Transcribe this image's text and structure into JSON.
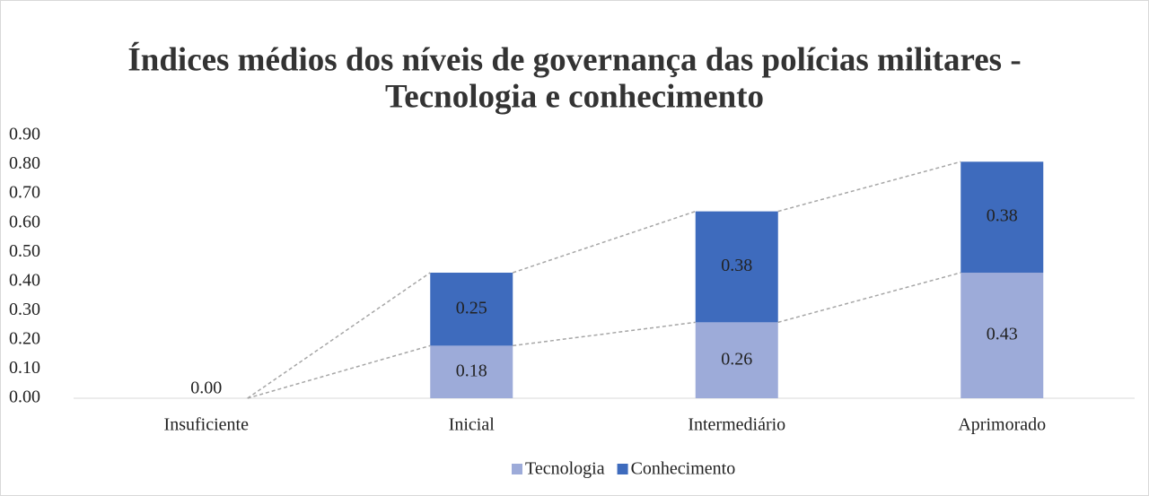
{
  "chart_data": {
    "type": "bar",
    "stacked": true,
    "title": "Índices médios dos níveis de governança das polícias militares -",
    "subtitle": "Tecnologia e conhecimento",
    "categories": [
      "Insuficiente",
      "Inicial",
      "Intermediário",
      "Aprimorado"
    ],
    "series": [
      {
        "name": "Tecnologia",
        "color": "#9dabd9",
        "values": [
          0,
          0.18,
          0.26,
          0.43
        ],
        "value_labels": [
          "0.00",
          "0.18",
          "0.26",
          "0.43"
        ]
      },
      {
        "name": "Conhecimento",
        "color": "#3e6bbd",
        "values": [
          0,
          0.25,
          0.38,
          0.38
        ],
        "value_labels": [
          null,
          "0.25",
          "0.38",
          "0.38"
        ]
      }
    ],
    "ylim": [
      0,
      0.9
    ],
    "yticks": [
      {
        "value": 0,
        "label": "0.00"
      },
      {
        "value": 0.1,
        "label": "0.10"
      },
      {
        "value": 0.2,
        "label": "0.20"
      },
      {
        "value": 0.3,
        "label": "0.30"
      },
      {
        "value": 0.4,
        "label": "0.40"
      },
      {
        "value": 0.5,
        "label": "0.50"
      },
      {
        "value": 0.6,
        "label": "0.60"
      },
      {
        "value": 0.7,
        "label": "0.70"
      },
      {
        "value": 0.8,
        "label": "0.80"
      },
      {
        "value": 0.9,
        "label": "0.90"
      }
    ],
    "grid": false,
    "legend": "bottom"
  }
}
